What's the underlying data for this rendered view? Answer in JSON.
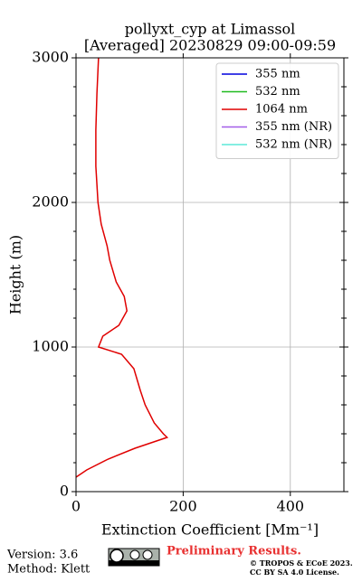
{
  "chart_data": {
    "type": "line",
    "title": "pollyxt_cyp at Limassol",
    "subtitle": "[Averaged] 20230829 09:00-09:59",
    "xlabel": "Extinction Coefficient [Mm⁻¹]",
    "ylabel": "Height (m)",
    "heights": [
      100,
      150,
      225,
      300,
      350,
      375,
      400,
      475,
      600,
      700,
      850,
      950,
      1000,
      1075,
      1150,
      1250,
      1350,
      1450,
      1600,
      1700,
      1850,
      2000,
      2250,
      2500,
      2750,
      3000
    ],
    "series": [
      {
        "name": "355 nm",
        "color": "#0000dd",
        "values": [
          null,
          null,
          null,
          null,
          null,
          null,
          null,
          null,
          null,
          null,
          null,
          null,
          null,
          null,
          null,
          null,
          null,
          null,
          null,
          null,
          null,
          null,
          null,
          null,
          null,
          null
        ]
      },
      {
        "name": "532 nm",
        "color": "#1fbb1f",
        "values": [
          null,
          null,
          null,
          null,
          null,
          null,
          null,
          null,
          null,
          null,
          null,
          null,
          null,
          null,
          null,
          null,
          null,
          null,
          null,
          null,
          null,
          null,
          null,
          null,
          null,
          null
        ]
      },
      {
        "name": "1064 nm",
        "color": "#e00000",
        "values": [
          0,
          20,
          60,
          110,
          150,
          170,
          163,
          146,
          129,
          120,
          108,
          85,
          42,
          50,
          80,
          95,
          90,
          75,
          63,
          58,
          47,
          41,
          37,
          37,
          39,
          42
        ]
      },
      {
        "name": "355 nm (NR)",
        "color": "#a25de8",
        "values": [
          null,
          null,
          null,
          null,
          null,
          null,
          null,
          null,
          null,
          null,
          null,
          null,
          null,
          null,
          null,
          null,
          null,
          null,
          null,
          null,
          null,
          null,
          null,
          null,
          null,
          null
        ]
      },
      {
        "name": "532 nm (NR)",
        "color": "#5ce8d8",
        "values": [
          null,
          null,
          null,
          null,
          null,
          null,
          null,
          null,
          null,
          null,
          null,
          null,
          null,
          null,
          null,
          null,
          null,
          null,
          null,
          null,
          null,
          null,
          null,
          null,
          null,
          null
        ]
      }
    ],
    "xlim": [
      0,
      500
    ],
    "xticks": [
      0,
      200,
      400
    ],
    "ylim": [
      0,
      3000
    ],
    "yticks": [
      0,
      1000,
      2000,
      3000
    ],
    "grid": true,
    "legend": "upper right"
  },
  "footer": {
    "version": "Version: 3.6",
    "method": "Method: Klett",
    "notice": "Preliminary Results.",
    "copyright": "© TROPOS & ECoE 2023.",
    "license": "CC BY SA 4.0 License."
  }
}
